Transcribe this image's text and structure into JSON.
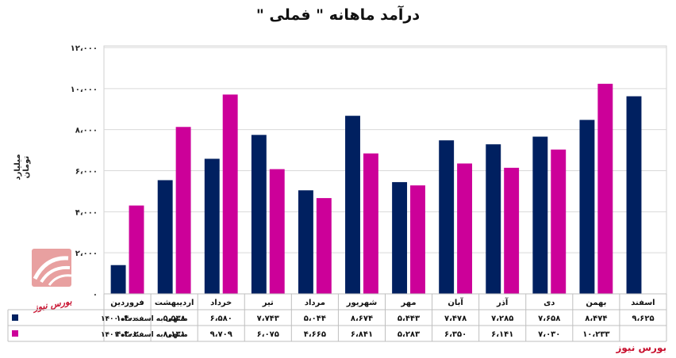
{
  "title": "درآمد ماهانه \" فملی \"",
  "brand_bottom": "بورس نیوز",
  "watermark": "بورس نیوز",
  "colors": {
    "series1": "#002060",
    "series2": "#cc0099",
    "grid": "#d9d9d9",
    "brand": "#c8102e"
  },
  "chart_data": {
    "type": "bar",
    "ylabel": "میلیارد تومان",
    "ylim": [
      0,
      12000
    ],
    "yticks": [
      0,
      2000,
      4000,
      6000,
      8000,
      10000,
      12000
    ],
    "ytick_labels": [
      "۰",
      "۲،۰۰۰",
      "۴،۰۰۰",
      "۶،۰۰۰",
      "۸،۰۰۰",
      "۱۰،۰۰۰",
      "۱۲،۰۰۰"
    ],
    "grid": true,
    "legend": "table-below",
    "categories": [
      "فروردین",
      "اردیبهشت",
      "خرداد",
      "تیر",
      "مرداد",
      "شهریور",
      "مهر",
      "آبان",
      "آذر",
      "دی",
      "بهمن",
      "اسفند"
    ],
    "series": [
      {
        "name": "منتهی به اسفندماه ۱۴۰۰",
        "values": [
          1400,
          5538,
          6580,
          7743,
          5044,
          8674,
          5443,
          7478,
          7285,
          7658,
          8474,
          9625
        ],
        "labels": [
          "۱،۴۰۰",
          "۵،۵۳۸",
          "۶،۵۸۰",
          "۷،۷۴۳",
          "۵،۰۴۴",
          "۸،۶۷۴",
          "۵،۴۴۳",
          "۷،۴۷۸",
          "۷،۲۸۵",
          "۷،۶۵۸",
          "۸،۴۷۴",
          "۹،۶۲۵"
        ]
      },
      {
        "name": "منتهی به اسفندماه ۱۴۰۱",
        "values": [
          4302,
          8131,
          9709,
          6075,
          4665,
          6841,
          5283,
          6350,
          6141,
          7030,
          10233,
          null
        ],
        "labels": [
          "۴،۳۰۲",
          "۸،۱۳۱",
          "۹،۷۰۹",
          "۶،۰۷۵",
          "۴،۶۶۵",
          "۶،۸۴۱",
          "۵،۲۸۳",
          "۶،۳۵۰",
          "۶،۱۴۱",
          "۷،۰۳۰",
          "۱۰،۲۳۳",
          ""
        ]
      }
    ]
  }
}
